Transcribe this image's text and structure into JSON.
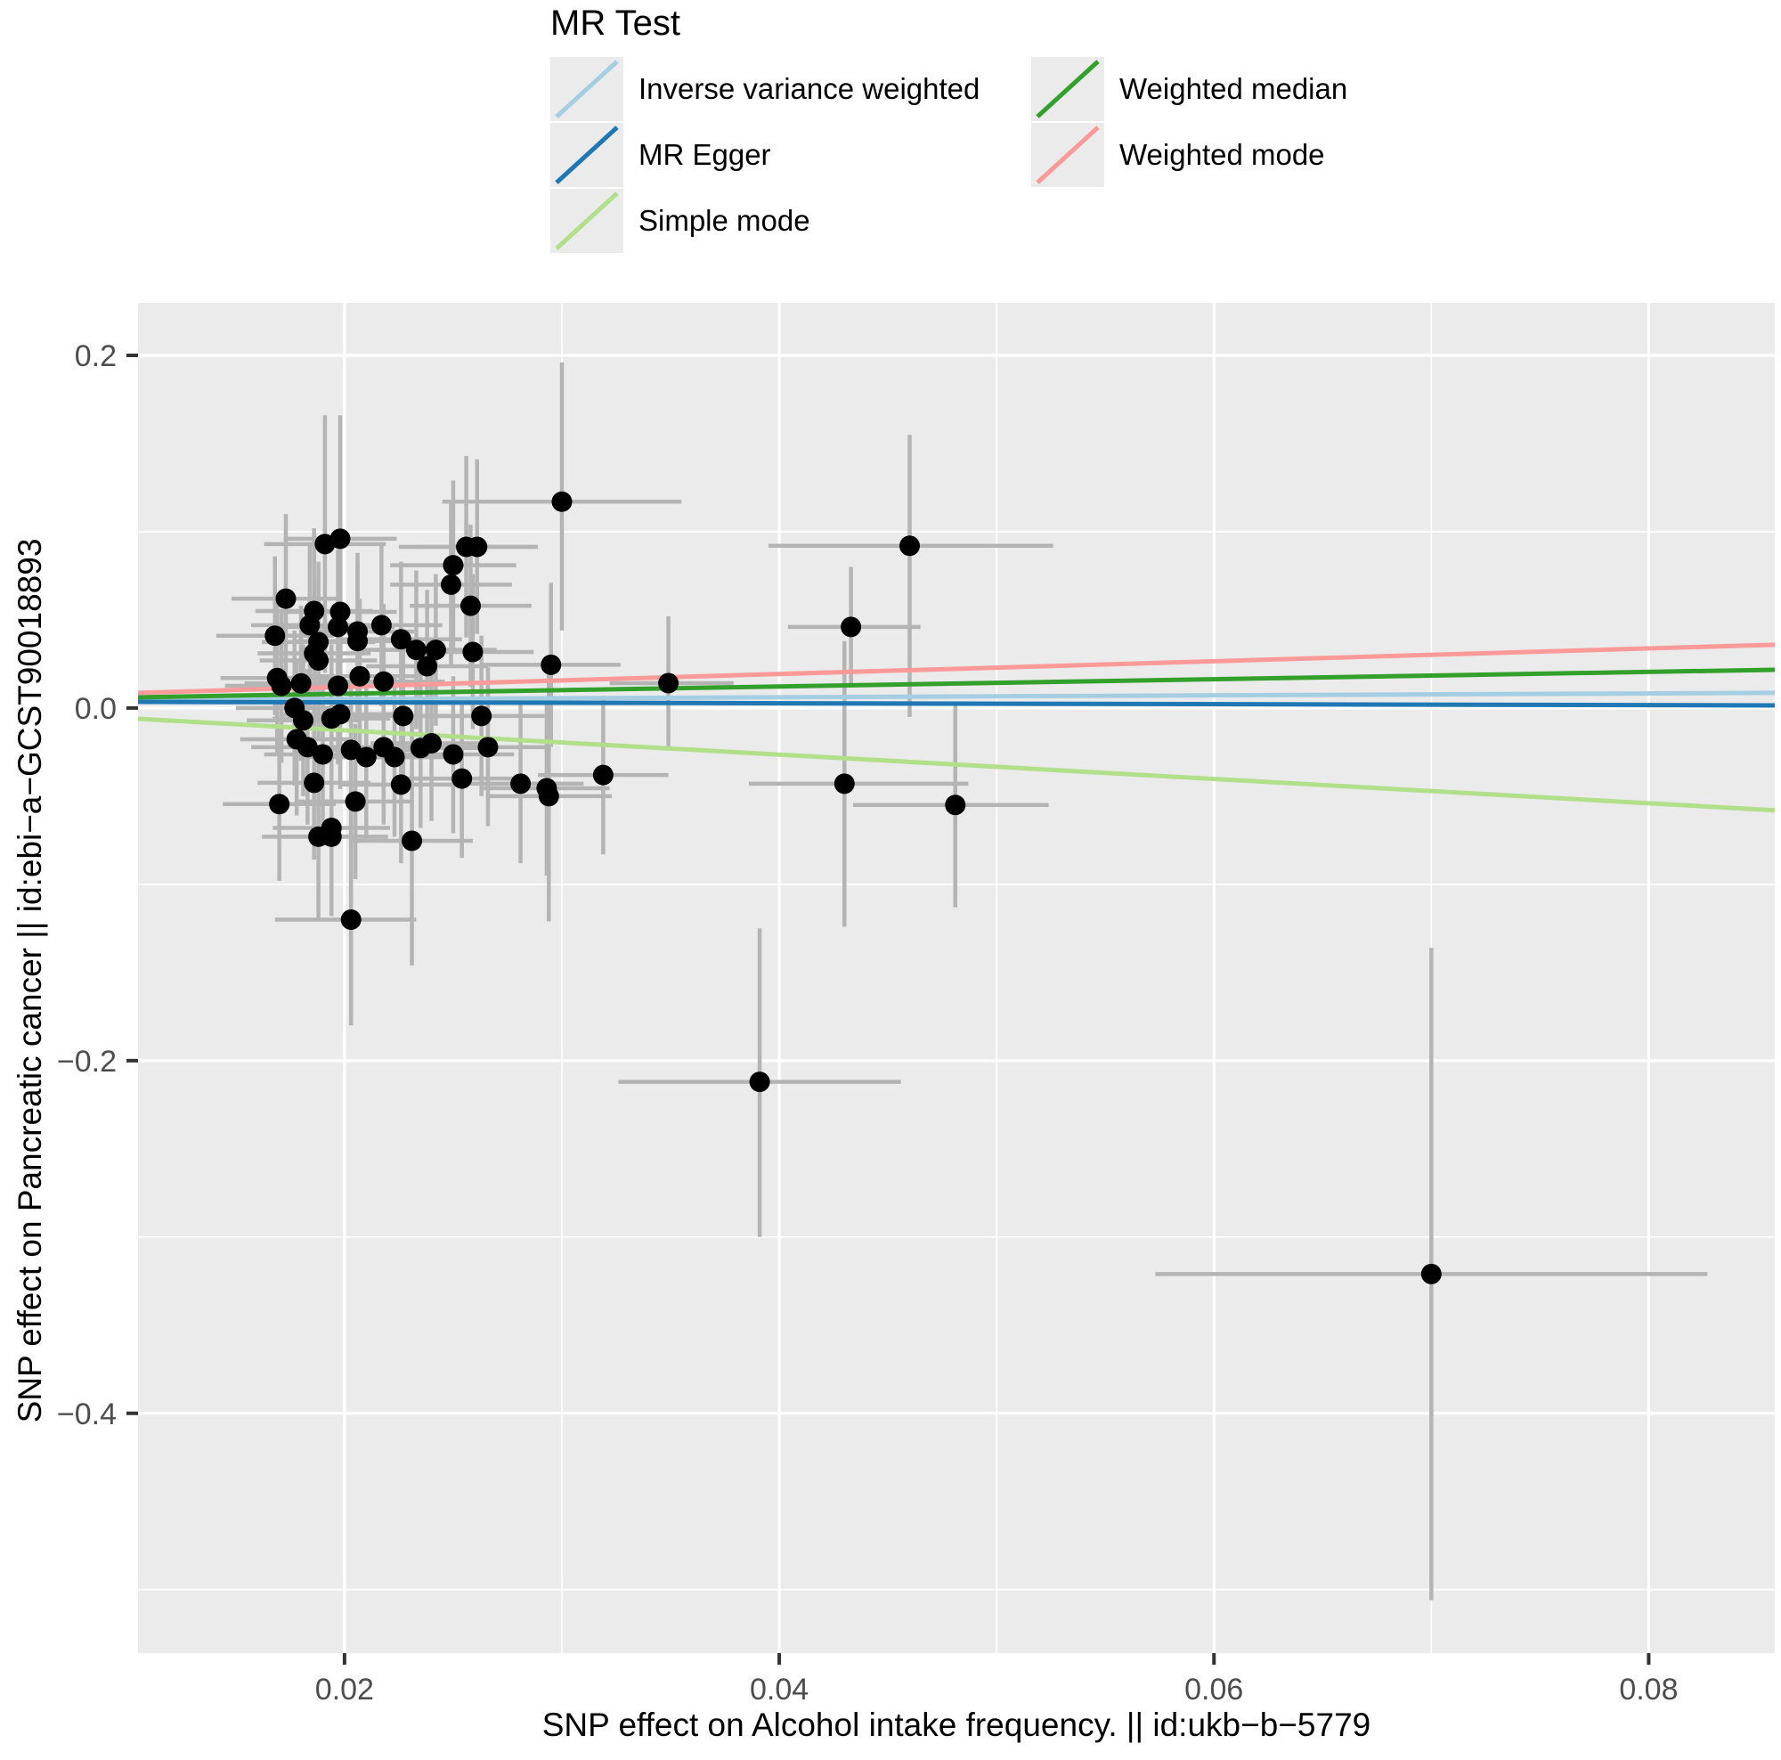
{
  "chart_data": {
    "type": "scatter",
    "title": "",
    "xlabel": "SNP effect on Alcohol intake frequency. || id:ukb−b−5779",
    "ylabel": "SNP effect on Pancreatic cancer || id:ebi−a−GCST90018893",
    "xlim": [
      0.0105,
      0.0858
    ],
    "ylim": [
      -0.536,
      0.2298
    ],
    "x_major_ticks": [
      0.02,
      0.04,
      0.06,
      0.08
    ],
    "x_tick_labels": [
      "0.02",
      "0.04",
      "0.06",
      "0.08"
    ],
    "x_minor_ticks": [
      0.03,
      0.05,
      0.07
    ],
    "y_major_ticks": [
      0.2,
      0.0,
      -0.2,
      -0.4
    ],
    "y_tick_labels": [
      "0.2",
      "0.0",
      "−0.2",
      "−0.4"
    ],
    "y_minor_ticks": [
      0.1,
      -0.1,
      -0.3,
      -0.5
    ],
    "grid": true,
    "legend_position": "top-center",
    "legend": {
      "title": "MR Test",
      "items": [
        {
          "label": "Inverse variance weighted",
          "color": "#A6CEE3",
          "column": 0
        },
        {
          "label": "MR Egger",
          "color": "#1F78B4",
          "column": 0
        },
        {
          "label": "Simple mode",
          "color": "#B2DF8A",
          "column": 0
        },
        {
          "label": "Weighted median",
          "color": "#33A02C",
          "column": 1
        },
        {
          "label": "Weighted mode",
          "color": "#FB9A99",
          "column": 1
        }
      ]
    },
    "lines": [
      {
        "name": "Inverse variance weighted",
        "color": "#A6CEE3",
        "y_start": 0.0045,
        "y_end": 0.0086
      },
      {
        "name": "MR Egger",
        "color": "#1F78B4",
        "y_start": 0.0035,
        "y_end": 0.0015
      },
      {
        "name": "Simple mode",
        "color": "#B2DF8A",
        "y_start": -0.0061,
        "y_end": -0.058
      },
      {
        "name": "Weighted median",
        "color": "#33A02C",
        "y_start": 0.0061,
        "y_end": 0.0217
      },
      {
        "name": "Weighted mode",
        "color": "#FB9A99",
        "y_start": 0.0086,
        "y_end": 0.0359
      }
    ],
    "points_format": [
      "x",
      "y",
      "x_ci_low",
      "x_ci_high",
      "y_ci_low",
      "y_ci_high"
    ],
    "points": [
      [
        0.0191,
        0.093,
        0.0163,
        0.0219,
        0.02,
        0.166
      ],
      [
        0.0198,
        0.096,
        0.0172,
        0.0224,
        0.026,
        0.166
      ],
      [
        0.03,
        0.117,
        0.0245,
        0.0355,
        0.044,
        0.196
      ],
      [
        0.0256,
        0.0914,
        0.0225,
        0.0287,
        0.04,
        0.143
      ],
      [
        0.0261,
        0.0914,
        0.0233,
        0.0289,
        0.042,
        0.141
      ],
      [
        0.025,
        0.081,
        0.0221,
        0.0279,
        0.033,
        0.129
      ],
      [
        0.0249,
        0.07,
        0.0221,
        0.0277,
        0.024,
        0.116
      ],
      [
        0.0173,
        0.062,
        0.0148,
        0.0198,
        0.014,
        0.11
      ],
      [
        0.0186,
        0.055,
        0.0159,
        0.0213,
        0.008,
        0.102
      ],
      [
        0.0198,
        0.0545,
        0.0172,
        0.0224,
        0.01,
        0.099
      ],
      [
        0.0258,
        0.058,
        0.023,
        0.0286,
        0.012,
        0.104
      ],
      [
        0.0184,
        0.047,
        0.0157,
        0.0211,
        0.0,
        0.094
      ],
      [
        0.0197,
        0.046,
        0.0171,
        0.0223,
        0.002,
        0.09
      ],
      [
        0.0217,
        0.047,
        0.0189,
        0.0245,
        0.001,
        0.093
      ],
      [
        0.0206,
        0.0434,
        0.018,
        0.0232,
        -0.001,
        0.088
      ],
      [
        0.0206,
        0.038,
        0.0178,
        0.0234,
        -0.006,
        0.082
      ],
      [
        0.0188,
        0.0374,
        0.0162,
        0.0214,
        -0.008,
        0.083
      ],
      [
        0.0168,
        0.041,
        0.0141,
        0.0195,
        -0.004,
        0.086
      ],
      [
        0.0226,
        0.039,
        0.0198,
        0.0254,
        -0.005,
        0.083
      ],
      [
        0.0233,
        0.033,
        0.0205,
        0.0261,
        -0.012,
        0.078
      ],
      [
        0.0242,
        0.033,
        0.0214,
        0.027,
        -0.01,
        0.076
      ],
      [
        0.0186,
        0.031,
        0.016,
        0.0212,
        -0.013,
        0.075
      ],
      [
        0.0259,
        0.0318,
        0.0231,
        0.0287,
        -0.012,
        0.076
      ],
      [
        0.0188,
        0.027,
        0.0161,
        0.0215,
        -0.017,
        0.071
      ],
      [
        0.0238,
        0.0237,
        0.021,
        0.0266,
        -0.02,
        0.067
      ],
      [
        0.0295,
        0.0245,
        0.0263,
        0.0327,
        -0.022,
        0.071
      ],
      [
        0.0169,
        0.017,
        0.0143,
        0.0195,
        -0.027,
        0.061
      ],
      [
        0.018,
        0.014,
        0.0154,
        0.0206,
        -0.03,
        0.058
      ],
      [
        0.0207,
        0.018,
        0.018,
        0.0234,
        -0.026,
        0.062
      ],
      [
        0.0218,
        0.015,
        0.019,
        0.0246,
        -0.029,
        0.059
      ],
      [
        0.0171,
        0.0126,
        0.0145,
        0.0197,
        -0.031,
        0.056
      ],
      [
        0.0197,
        0.0126,
        0.017,
        0.0224,
        -0.032,
        0.057
      ],
      [
        0.0349,
        0.0141,
        0.0322,
        0.0379,
        -0.024,
        0.052
      ],
      [
        0.046,
        0.092,
        0.0395,
        0.0526,
        -0.005,
        0.155
      ],
      [
        0.0433,
        0.046,
        0.0404,
        0.0465,
        0.012,
        0.08
      ],
      [
        0.0177,
        0.0,
        0.015,
        0.0204,
        -0.044,
        0.044
      ],
      [
        0.0181,
        -0.007,
        0.0155,
        0.0207,
        -0.05,
        0.036
      ],
      [
        0.0194,
        -0.006,
        0.0167,
        0.0221,
        -0.048,
        0.036
      ],
      [
        0.0198,
        -0.0035,
        0.0172,
        0.0224,
        -0.046,
        0.039
      ],
      [
        0.0227,
        -0.0045,
        0.0199,
        0.0255,
        -0.048,
        0.039
      ],
      [
        0.0263,
        -0.0045,
        0.0234,
        0.0292,
        -0.05,
        0.041
      ],
      [
        0.0178,
        -0.0177,
        0.0152,
        0.0204,
        -0.061,
        0.026
      ],
      [
        0.0183,
        -0.0222,
        0.0157,
        0.0209,
        -0.066,
        0.022
      ],
      [
        0.019,
        -0.0263,
        0.0163,
        0.0217,
        -0.07,
        0.017
      ],
      [
        0.0203,
        -0.0237,
        0.0176,
        0.023,
        -0.067,
        0.02
      ],
      [
        0.021,
        -0.0278,
        0.0183,
        0.0237,
        -0.072,
        0.016
      ],
      [
        0.0218,
        -0.0222,
        0.0191,
        0.0245,
        -0.066,
        0.022
      ],
      [
        0.0223,
        -0.0278,
        0.0195,
        0.0251,
        -0.073,
        0.017
      ],
      [
        0.0235,
        -0.0227,
        0.0207,
        0.0263,
        -0.068,
        0.023
      ],
      [
        0.024,
        -0.02,
        0.0212,
        0.0268,
        -0.064,
        0.024
      ],
      [
        0.025,
        -0.0263,
        0.0222,
        0.0278,
        -0.071,
        0.018
      ],
      [
        0.0266,
        -0.0222,
        0.0237,
        0.0295,
        -0.067,
        0.023
      ],
      [
        0.0186,
        -0.0424,
        0.016,
        0.0212,
        -0.086,
        0.001
      ],
      [
        0.0226,
        -0.0434,
        0.0198,
        0.0254,
        -0.088,
        0.001
      ],
      [
        0.0254,
        -0.04,
        0.0225,
        0.0283,
        -0.085,
        0.005
      ],
      [
        0.0281,
        -0.0429,
        0.0252,
        0.031,
        -0.088,
        0.002
      ],
      [
        0.017,
        -0.0545,
        0.0144,
        0.0196,
        -0.098,
        -0.011
      ],
      [
        0.0205,
        -0.053,
        0.0178,
        0.0232,
        -0.097,
        -0.009
      ],
      [
        0.0293,
        -0.0455,
        0.0264,
        0.0322,
        -0.095,
        0.004
      ],
      [
        0.0294,
        -0.05,
        0.0265,
        0.0323,
        -0.121,
        0.021
      ],
      [
        0.0319,
        -0.038,
        0.0289,
        0.0349,
        -0.083,
        0.007
      ],
      [
        0.043,
        -0.0429,
        0.0386,
        0.0487,
        -0.124,
        0.038
      ],
      [
        0.0194,
        -0.068,
        0.0167,
        0.0221,
        -0.113,
        -0.023
      ],
      [
        0.0188,
        -0.073,
        0.0162,
        0.0214,
        -0.119,
        -0.027
      ],
      [
        0.0194,
        -0.073,
        0.0168,
        0.022,
        -0.118,
        -0.028
      ],
      [
        0.0231,
        -0.0753,
        0.0203,
        0.0259,
        -0.146,
        -0.005
      ],
      [
        0.0481,
        -0.055,
        0.0434,
        0.0524,
        -0.113,
        0.003
      ],
      [
        0.0203,
        -0.12,
        0.0168,
        0.0233,
        -0.18,
        -0.062
      ],
      [
        0.0391,
        -0.212,
        0.0326,
        0.0456,
        -0.3,
        -0.125
      ],
      [
        0.07,
        -0.321,
        0.0573,
        0.0827,
        -0.506,
        -0.136
      ]
    ]
  },
  "colors": {
    "panel_bg": "#EBEBEB",
    "grid": "#FFFFFF",
    "error_bar": "#B4B4B4",
    "point": "#000000",
    "tick_mark": "#333333",
    "tick_label": "#4D4D4D",
    "axis_title": "#000000"
  }
}
